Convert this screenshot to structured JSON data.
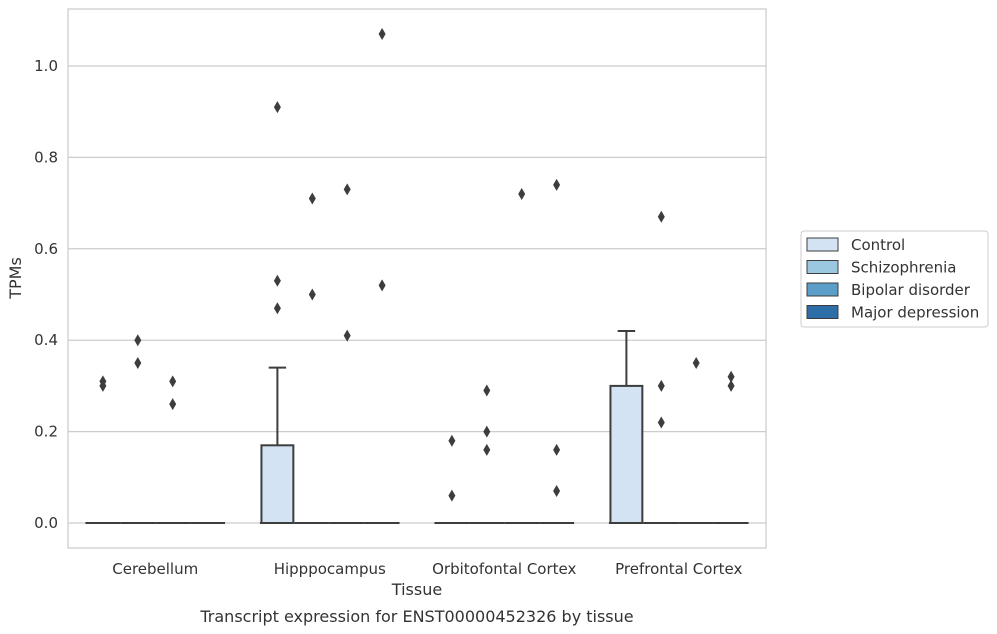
{
  "caption": "Transcript expression for ENST00000452326 by tissue",
  "chart_data": {
    "type": "box",
    "xlabel": "Tissue",
    "ylabel": "TPMs",
    "ylim": [
      -0.05,
      1.13
    ],
    "yticks": [
      "0.0",
      "0.2",
      "0.4",
      "0.6",
      "0.8",
      "1.0"
    ],
    "grid": true,
    "legend_position": "right",
    "categories": [
      "Cerebellum",
      "Hipppocampus",
      "Orbitofontal Cortex",
      "Prefrontal Cortex"
    ],
    "series": [
      {
        "name": "Control",
        "color": "#d3e3f3",
        "boxes": [
          {
            "q1": 0,
            "median": 0,
            "q3": 0,
            "whisker_low": 0,
            "whisker_high": 0,
            "outliers": [
              0.3,
              0.31
            ]
          },
          {
            "q1": 0,
            "median": 0,
            "q3": 0.17,
            "whisker_low": 0,
            "whisker_high": 0.34,
            "outliers": [
              0.47,
              0.53,
              0.91
            ]
          },
          {
            "q1": 0,
            "median": 0,
            "q3": 0,
            "whisker_low": 0,
            "whisker_high": 0,
            "outliers": [
              0.06,
              0.18
            ]
          },
          {
            "q1": 0,
            "median": 0,
            "q3": 0.3,
            "whisker_low": 0,
            "whisker_high": 0.42,
            "outliers": []
          }
        ]
      },
      {
        "name": "Schizophrenia",
        "color": "#9ac8e0",
        "boxes": [
          {
            "q1": 0,
            "median": 0,
            "q3": 0,
            "whisker_low": 0,
            "whisker_high": 0,
            "outliers": [
              0.35,
              0.4
            ]
          },
          {
            "q1": 0,
            "median": 0,
            "q3": 0,
            "whisker_low": 0,
            "whisker_high": 0,
            "outliers": [
              0.5,
              0.71
            ]
          },
          {
            "q1": 0,
            "median": 0,
            "q3": 0,
            "whisker_low": 0,
            "whisker_high": 0,
            "outliers": [
              0.16,
              0.2,
              0.29
            ]
          },
          {
            "q1": 0,
            "median": 0,
            "q3": 0,
            "whisker_low": 0,
            "whisker_high": 0,
            "outliers": [
              0.22,
              0.3,
              0.67
            ]
          }
        ]
      },
      {
        "name": "Bipolar disorder",
        "color": "#5a9ec9",
        "boxes": [
          {
            "q1": 0,
            "median": 0,
            "q3": 0,
            "whisker_low": 0,
            "whisker_high": 0,
            "outliers": [
              0.26,
              0.31
            ]
          },
          {
            "q1": 0,
            "median": 0,
            "q3": 0,
            "whisker_low": 0,
            "whisker_high": 0,
            "outliers": [
              0.41,
              0.73
            ]
          },
          {
            "q1": 0,
            "median": 0,
            "q3": 0,
            "whisker_low": 0,
            "whisker_high": 0,
            "outliers": [
              0.72
            ]
          },
          {
            "q1": 0,
            "median": 0,
            "q3": 0,
            "whisker_low": 0,
            "whisker_high": 0,
            "outliers": [
              0.35
            ]
          }
        ]
      },
      {
        "name": "Major depression",
        "color": "#2d6ea8",
        "boxes": [
          {
            "q1": 0,
            "median": 0,
            "q3": 0,
            "whisker_low": 0,
            "whisker_high": 0,
            "outliers": []
          },
          {
            "q1": 0,
            "median": 0,
            "q3": 0,
            "whisker_low": 0,
            "whisker_high": 0,
            "outliers": [
              0.52,
              1.07
            ]
          },
          {
            "q1": 0,
            "median": 0,
            "q3": 0,
            "whisker_low": 0,
            "whisker_high": 0,
            "outliers": [
              0.07,
              0.16,
              0.74
            ]
          },
          {
            "q1": 0,
            "median": 0,
            "q3": 0,
            "whisker_low": 0,
            "whisker_high": 0,
            "outliers": [
              0.3,
              0.32
            ]
          }
        ]
      }
    ]
  }
}
